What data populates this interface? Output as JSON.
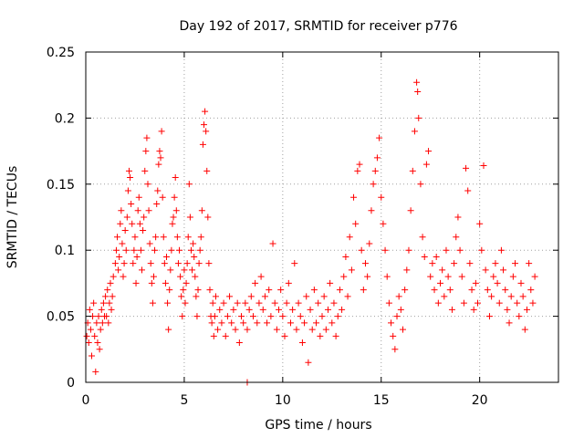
{
  "chart_data": {
    "type": "scatter",
    "title": "Day 192 of 2017, SRMTID for receiver p776",
    "xlabel": "GPS time / hours",
    "ylabel": "SRMTID / TECUs",
    "xlim": [
      0,
      24
    ],
    "ylim": [
      0,
      0.25
    ],
    "x_ticks": [
      0,
      5,
      10,
      15,
      20
    ],
    "x_tick_labels": [
      "0",
      "5",
      "10",
      "15",
      "20"
    ],
    "y_ticks": [
      0,
      0.05,
      0.1,
      0.15,
      0.2,
      0.25
    ],
    "y_tick_labels": [
      "0",
      "0.05",
      "0.1",
      "0.15",
      "0.2",
      "0.25"
    ],
    "grid": true,
    "marker": "+",
    "color": "#ff0000",
    "series": [
      {
        "name": "SRMTID",
        "points": [
          [
            0.05,
            0.035
          ],
          [
            0.1,
            0.045
          ],
          [
            0.15,
            0.03
          ],
          [
            0.2,
            0.055
          ],
          [
            0.25,
            0.04
          ],
          [
            0.3,
            0.02
          ],
          [
            0.35,
            0.05
          ],
          [
            0.4,
            0.06
          ],
          [
            0.45,
            0.035
          ],
          [
            0.5,
            0.008
          ],
          [
            0.55,
            0.045
          ],
          [
            0.6,
            0.03
          ],
          [
            0.65,
            0.05
          ],
          [
            0.7,
            0.025
          ],
          [
            0.75,
            0.04
          ],
          [
            0.8,
            0.055
          ],
          [
            0.85,
            0.045
          ],
          [
            0.9,
            0.06
          ],
          [
            0.95,
            0.05
          ],
          [
            1.0,
            0.065
          ],
          [
            1.05,
            0.05
          ],
          [
            1.1,
            0.07
          ],
          [
            1.15,
            0.045
          ],
          [
            1.2,
            0.06
          ],
          [
            1.25,
            0.075
          ],
          [
            1.3,
            0.055
          ],
          [
            1.35,
            0.065
          ],
          [
            1.4,
            0.08
          ],
          [
            1.5,
            0.09
          ],
          [
            1.55,
            0.1
          ],
          [
            1.6,
            0.11
          ],
          [
            1.65,
            0.085
          ],
          [
            1.7,
            0.095
          ],
          [
            1.75,
            0.12
          ],
          [
            1.8,
            0.13
          ],
          [
            1.85,
            0.105
          ],
          [
            1.9,
            0.08
          ],
          [
            1.95,
            0.09
          ],
          [
            2.0,
            0.115
          ],
          [
            2.05,
            0.1
          ],
          [
            2.1,
            0.125
          ],
          [
            2.15,
            0.145
          ],
          [
            2.2,
            0.16
          ],
          [
            2.25,
            0.155
          ],
          [
            2.3,
            0.135
          ],
          [
            2.35,
            0.12
          ],
          [
            2.4,
            0.09
          ],
          [
            2.45,
            0.1
          ],
          [
            2.5,
            0.11
          ],
          [
            2.55,
            0.075
          ],
          [
            2.6,
            0.095
          ],
          [
            2.65,
            0.13
          ],
          [
            2.7,
            0.14
          ],
          [
            2.75,
            0.12
          ],
          [
            2.8,
            0.1
          ],
          [
            2.85,
            0.085
          ],
          [
            2.9,
            0.115
          ],
          [
            2.95,
            0.125
          ],
          [
            3.0,
            0.16
          ],
          [
            3.05,
            0.175
          ],
          [
            3.1,
            0.185
          ],
          [
            3.15,
            0.15
          ],
          [
            3.2,
            0.13
          ],
          [
            3.25,
            0.105
          ],
          [
            3.3,
            0.09
          ],
          [
            3.35,
            0.075
          ],
          [
            3.4,
            0.06
          ],
          [
            3.45,
            0.08
          ],
          [
            3.5,
            0.1
          ],
          [
            3.55,
            0.11
          ],
          [
            3.6,
            0.135
          ],
          [
            3.65,
            0.145
          ],
          [
            3.7,
            0.165
          ],
          [
            3.75,
            0.175
          ],
          [
            3.8,
            0.17
          ],
          [
            3.85,
            0.19
          ],
          [
            3.9,
            0.14
          ],
          [
            3.95,
            0.11
          ],
          [
            4.0,
            0.09
          ],
          [
            4.05,
            0.075
          ],
          [
            4.1,
            0.095
          ],
          [
            4.15,
            0.06
          ],
          [
            4.2,
            0.04
          ],
          [
            4.25,
            0.07
          ],
          [
            4.3,
            0.085
          ],
          [
            4.35,
            0.1
          ],
          [
            4.4,
            0.12
          ],
          [
            4.45,
            0.125
          ],
          [
            4.5,
            0.14
          ],
          [
            4.55,
            0.155
          ],
          [
            4.6,
            0.13
          ],
          [
            4.65,
            0.11
          ],
          [
            4.7,
            0.09
          ],
          [
            4.75,
            0.1
          ],
          [
            4.8,
            0.08
          ],
          [
            4.85,
            0.065
          ],
          [
            4.9,
            0.05
          ],
          [
            4.95,
            0.07
          ],
          [
            5.0,
            0.085
          ],
          [
            5.05,
            0.06
          ],
          [
            5.1,
            0.075
          ],
          [
            5.15,
            0.09
          ],
          [
            5.2,
            0.11
          ],
          [
            5.25,
            0.15
          ],
          [
            5.3,
            0.125
          ],
          [
            5.35,
            0.1
          ],
          [
            5.4,
            0.085
          ],
          [
            5.45,
            0.105
          ],
          [
            5.5,
            0.095
          ],
          [
            5.55,
            0.08
          ],
          [
            5.6,
            0.065
          ],
          [
            5.65,
            0.05
          ],
          [
            5.7,
            0.07
          ],
          [
            5.75,
            0.09
          ],
          [
            5.8,
            0.1
          ],
          [
            5.85,
            0.11
          ],
          [
            5.9,
            0.13
          ],
          [
            5.95,
            0.18
          ],
          [
            6.0,
            0.195
          ],
          [
            6.05,
            0.205
          ],
          [
            6.1,
            0.19
          ],
          [
            6.15,
            0.16
          ],
          [
            6.2,
            0.125
          ],
          [
            6.25,
            0.09
          ],
          [
            6.3,
            0.07
          ],
          [
            6.35,
            0.05
          ],
          [
            6.4,
            0.045
          ],
          [
            6.45,
            0.06
          ],
          [
            6.5,
            0.035
          ],
          [
            6.55,
            0.05
          ],
          [
            6.6,
            0.065
          ],
          [
            6.7,
            0.04
          ],
          [
            6.8,
            0.055
          ],
          [
            6.9,
            0.045
          ],
          [
            7.0,
            0.06
          ],
          [
            7.1,
            0.035
          ],
          [
            7.2,
            0.05
          ],
          [
            7.3,
            0.065
          ],
          [
            7.4,
            0.045
          ],
          [
            7.5,
            0.055
          ],
          [
            7.6,
            0.04
          ],
          [
            7.7,
            0.06
          ],
          [
            7.8,
            0.03
          ],
          [
            7.9,
            0.05
          ],
          [
            8.0,
            0.045
          ],
          [
            8.1,
            0.06
          ],
          [
            8.2,
            0.04
          ],
          [
            8.3,
            0.055
          ],
          [
            8.4,
            0.065
          ],
          [
            8.5,
            0.05
          ],
          [
            8.6,
            0.075
          ],
          [
            8.7,
            0.045
          ],
          [
            8.8,
            0.06
          ],
          [
            8.9,
            0.08
          ],
          [
            9.0,
            0.055
          ],
          [
            9.1,
            0.065
          ],
          [
            9.2,
            0.045
          ],
          [
            9.3,
            0.07
          ],
          [
            9.4,
            0.05
          ],
          [
            9.5,
            0.105
          ],
          [
            9.6,
            0.06
          ],
          [
            9.7,
            0.04
          ],
          [
            9.8,
            0.055
          ],
          [
            9.9,
            0.07
          ],
          [
            10.0,
            0.05
          ],
          [
            10.1,
            0.035
          ],
          [
            10.2,
            0.06
          ],
          [
            10.3,
            0.075
          ],
          [
            10.4,
            0.045
          ],
          [
            10.5,
            0.055
          ],
          [
            10.6,
            0.09
          ],
          [
            10.7,
            0.04
          ],
          [
            10.8,
            0.06
          ],
          [
            10.9,
            0.05
          ],
          [
            11.0,
            0.03
          ],
          [
            11.1,
            0.045
          ],
          [
            11.2,
            0.065
          ],
          [
            11.3,
            0.015
          ],
          [
            11.4,
            0.055
          ],
          [
            11.5,
            0.04
          ],
          [
            11.6,
            0.07
          ],
          [
            11.7,
            0.045
          ],
          [
            11.8,
            0.06
          ],
          [
            11.9,
            0.035
          ],
          [
            12.0,
            0.05
          ],
          [
            12.1,
            0.065
          ],
          [
            12.2,
            0.04
          ],
          [
            12.3,
            0.055
          ],
          [
            12.4,
            0.075
          ],
          [
            12.5,
            0.045
          ],
          [
            12.6,
            0.06
          ],
          [
            12.7,
            0.035
          ],
          [
            12.8,
            0.05
          ],
          [
            12.9,
            0.07
          ],
          [
            13.0,
            0.055
          ],
          [
            13.1,
            0.08
          ],
          [
            13.2,
            0.095
          ],
          [
            13.3,
            0.065
          ],
          [
            13.4,
            0.11
          ],
          [
            13.5,
            0.085
          ],
          [
            13.6,
            0.14
          ],
          [
            13.7,
            0.12
          ],
          [
            13.8,
            0.16
          ],
          [
            13.9,
            0.165
          ],
          [
            14.0,
            0.1
          ],
          [
            14.1,
            0.07
          ],
          [
            14.2,
            0.09
          ],
          [
            14.3,
            0.08
          ],
          [
            14.4,
            0.105
          ],
          [
            14.5,
            0.13
          ],
          [
            14.6,
            0.15
          ],
          [
            14.7,
            0.16
          ],
          [
            14.8,
            0.17
          ],
          [
            14.9,
            0.185
          ],
          [
            15.0,
            0.14
          ],
          [
            15.1,
            0.12
          ],
          [
            15.2,
            0.1
          ],
          [
            15.3,
            0.08
          ],
          [
            15.4,
            0.06
          ],
          [
            15.5,
            0.045
          ],
          [
            15.6,
            0.035
          ],
          [
            15.7,
            0.025
          ],
          [
            15.8,
            0.05
          ],
          [
            15.9,
            0.065
          ],
          [
            16.0,
            0.055
          ],
          [
            16.1,
            0.04
          ],
          [
            16.2,
            0.07
          ],
          [
            16.3,
            0.085
          ],
          [
            16.4,
            0.1
          ],
          [
            16.5,
            0.13
          ],
          [
            16.6,
            0.16
          ],
          [
            16.7,
            0.19
          ],
          [
            16.8,
            0.227
          ],
          [
            16.85,
            0.22
          ],
          [
            16.9,
            0.2
          ],
          [
            17.0,
            0.15
          ],
          [
            17.1,
            0.11
          ],
          [
            17.2,
            0.095
          ],
          [
            17.3,
            0.165
          ],
          [
            17.4,
            0.175
          ],
          [
            17.5,
            0.08
          ],
          [
            17.6,
            0.09
          ],
          [
            17.7,
            0.07
          ],
          [
            17.8,
            0.095
          ],
          [
            17.9,
            0.06
          ],
          [
            18.0,
            0.075
          ],
          [
            18.1,
            0.085
          ],
          [
            18.2,
            0.065
          ],
          [
            18.3,
            0.1
          ],
          [
            18.4,
            0.08
          ],
          [
            18.5,
            0.07
          ],
          [
            18.6,
            0.055
          ],
          [
            18.7,
            0.09
          ],
          [
            18.8,
            0.11
          ],
          [
            18.9,
            0.125
          ],
          [
            19.0,
            0.1
          ],
          [
            19.1,
            0.08
          ],
          [
            19.2,
            0.06
          ],
          [
            19.3,
            0.162
          ],
          [
            19.4,
            0.145
          ],
          [
            19.5,
            0.09
          ],
          [
            19.6,
            0.07
          ],
          [
            19.7,
            0.055
          ],
          [
            19.8,
            0.075
          ],
          [
            19.9,
            0.06
          ],
          [
            20.0,
            0.12
          ],
          [
            20.1,
            0.1
          ],
          [
            20.2,
            0.164
          ],
          [
            20.3,
            0.085
          ],
          [
            20.4,
            0.07
          ],
          [
            20.5,
            0.05
          ],
          [
            20.6,
            0.065
          ],
          [
            20.7,
            0.08
          ],
          [
            20.8,
            0.09
          ],
          [
            20.9,
            0.075
          ],
          [
            21.0,
            0.06
          ],
          [
            21.1,
            0.1
          ],
          [
            21.2,
            0.085
          ],
          [
            21.3,
            0.07
          ],
          [
            21.4,
            0.055
          ],
          [
            21.5,
            0.045
          ],
          [
            21.6,
            0.065
          ],
          [
            21.7,
            0.08
          ],
          [
            21.8,
            0.09
          ],
          [
            21.9,
            0.06
          ],
          [
            22.0,
            0.05
          ],
          [
            22.1,
            0.075
          ],
          [
            22.2,
            0.065
          ],
          [
            22.3,
            0.04
          ],
          [
            22.4,
            0.055
          ],
          [
            22.5,
            0.09
          ],
          [
            22.6,
            0.07
          ],
          [
            22.7,
            0.06
          ],
          [
            22.8,
            0.08
          ],
          [
            8.2,
            0.0
          ]
        ]
      }
    ]
  }
}
